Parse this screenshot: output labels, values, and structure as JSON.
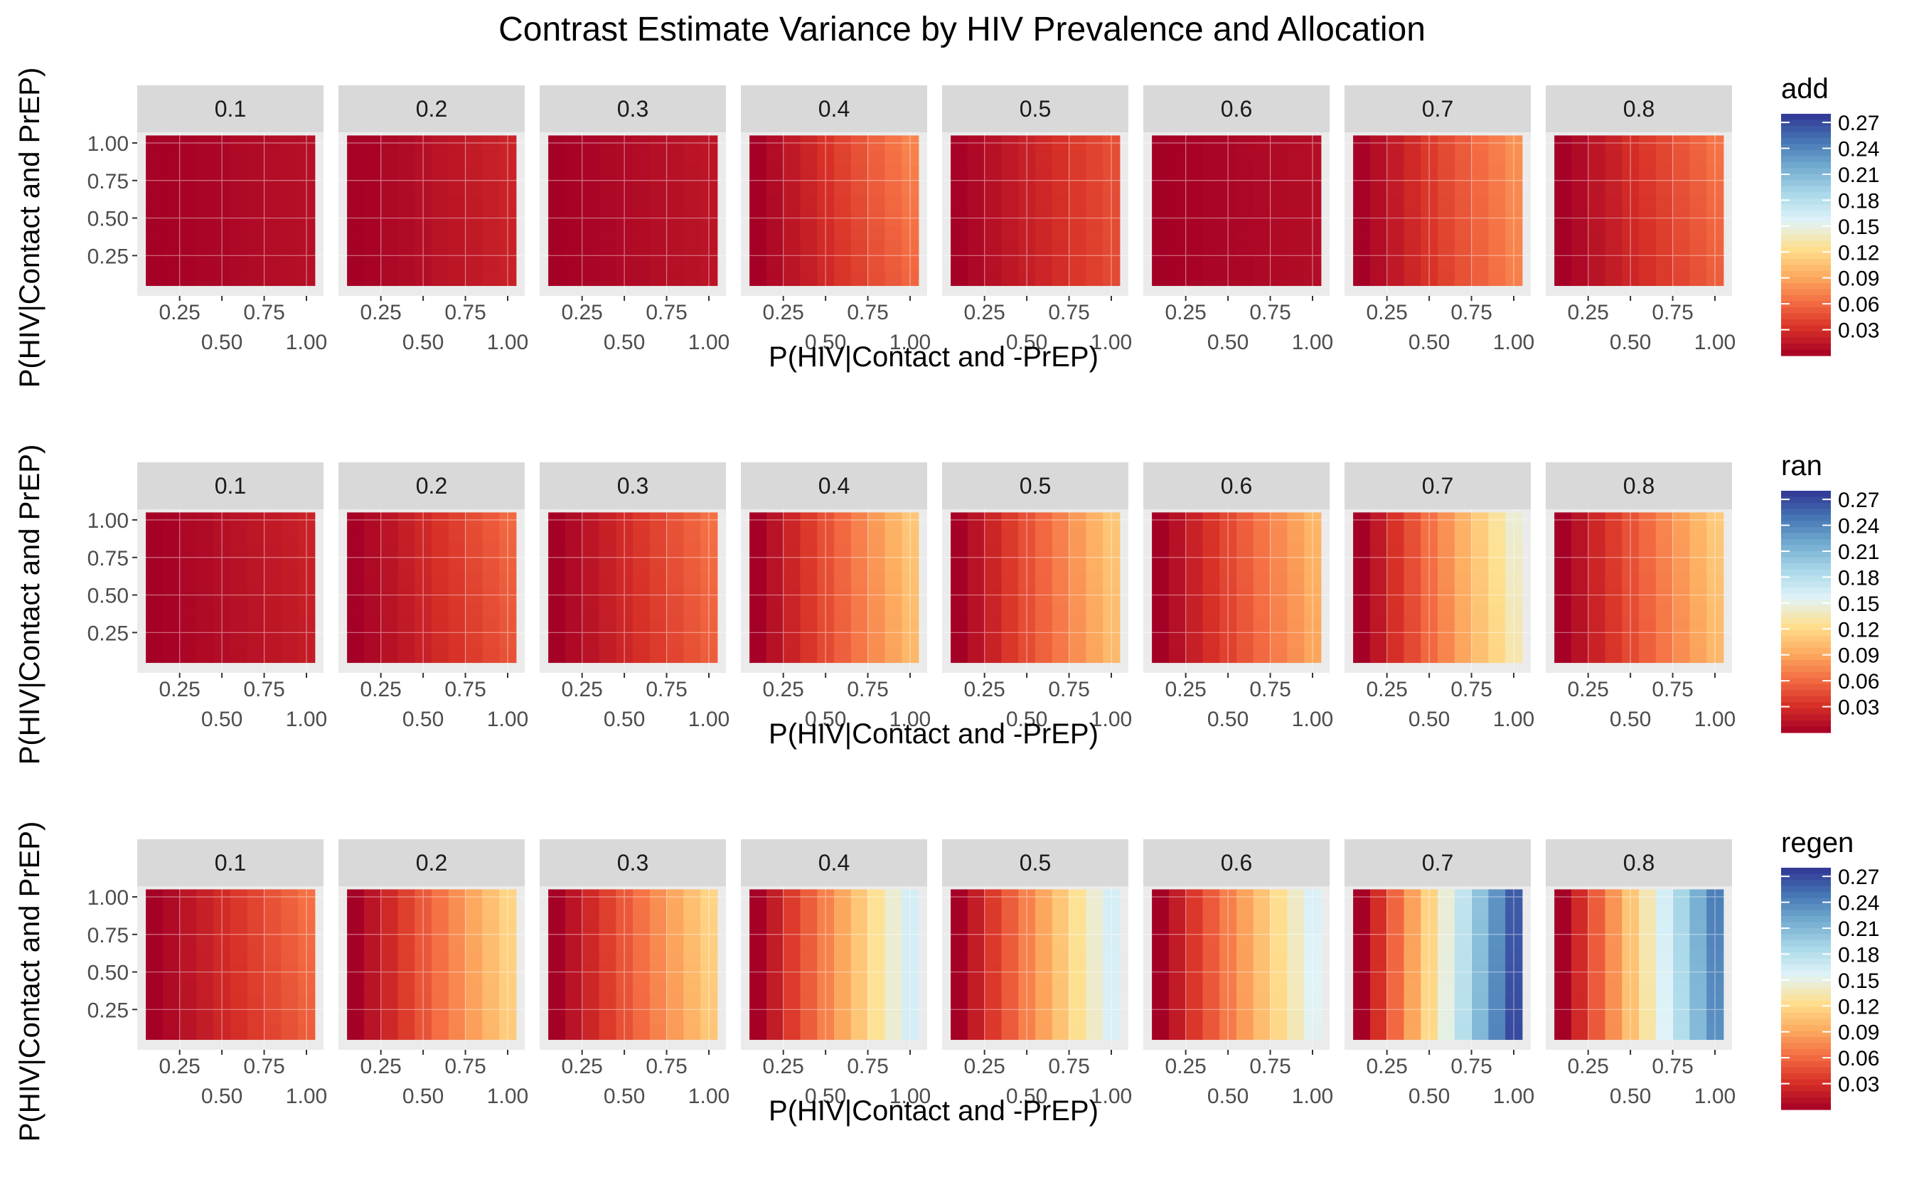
{
  "title": "Contrast Estimate Variance by HIV Prevalence and Allocation",
  "chart_data": {
    "type": "heatmap",
    "title": "Contrast Estimate Variance by HIV Prevalence and Allocation",
    "xlabel": "P(HIV|Contact and -PrEP)",
    "ylabel": "P(HIV|Contact and PrEP)",
    "x_ticks": [
      "0.25",
      "0.50",
      "0.75",
      "1.00"
    ],
    "y_ticks": [
      "0.25",
      "0.50",
      "0.75",
      "1.00"
    ],
    "x_range": [
      0.1,
      1.0
    ],
    "y_range": [
      0.1,
      1.0
    ],
    "facets": [
      "0.1",
      "0.2",
      "0.3",
      "0.4",
      "0.5",
      "0.6",
      "0.7",
      "0.8"
    ],
    "color_scale": {
      "palette": "RdYlBu",
      "range": [
        0,
        0.28
      ],
      "ticks": [
        "0.27",
        "0.24",
        "0.21",
        "0.18",
        "0.15",
        "0.12",
        "0.09",
        "0.06",
        "0.03"
      ],
      "stops": [
        "#a50026",
        "#d73027",
        "#f46d43",
        "#fdae61",
        "#fee090",
        "#e0f3f8",
        "#abd9e9",
        "#74add1",
        "#4575b4",
        "#313695"
      ]
    },
    "grid": true,
    "legend": "right",
    "rows": [
      {
        "name": "add",
        "panels": [
          {
            "facet": "0.1",
            "cell_means": [
              [
                0.0,
                0.001,
                0.002,
                0.003,
                0.004,
                0.005,
                0.007,
                0.008,
                0.009,
                0.01
              ],
              [
                0.001,
                0.001,
                0.002,
                0.003,
                0.004,
                0.006,
                0.007,
                0.008,
                0.009,
                0.01
              ]
            ]
          },
          {
            "facet": "0.2",
            "cell_means": [
              [
                0.0,
                0.002,
                0.005,
                0.007,
                0.009,
                0.012,
                0.014,
                0.016,
                0.019,
                0.021
              ],
              [
                0.002,
                0.002,
                0.005,
                0.007,
                0.01,
                0.013,
                0.015,
                0.018,
                0.02,
                0.023
              ]
            ]
          },
          {
            "facet": "0.3",
            "cell_means": [
              [
                0.0,
                0.001,
                0.003,
                0.004,
                0.006,
                0.007,
                0.009,
                0.01,
                0.011,
                0.013
              ],
              [
                0.0,
                0.002,
                0.003,
                0.005,
                0.006,
                0.008,
                0.01,
                0.011,
                0.013,
                0.014
              ]
            ]
          },
          {
            "facet": "0.4",
            "cell_means": [
              [
                0.0,
                0.006,
                0.013,
                0.019,
                0.026,
                0.033,
                0.039,
                0.046,
                0.052,
                0.058
              ],
              [
                0.0,
                0.008,
                0.016,
                0.024,
                0.032,
                0.041,
                0.049,
                0.057,
                0.065,
                0.073
              ]
            ]
          },
          {
            "facet": "0.5",
            "cell_means": [
              [
                0.0,
                0.005,
                0.01,
                0.015,
                0.019,
                0.024,
                0.029,
                0.034,
                0.039,
                0.044
              ],
              [
                0.002,
                0.006,
                0.011,
                0.016,
                0.021,
                0.026,
                0.031,
                0.036,
                0.041,
                0.046
              ]
            ]
          },
          {
            "facet": "0.6",
            "cell_means": [
              [
                0.0,
                0.001,
                0.002,
                0.003,
                0.004,
                0.004,
                0.005,
                0.006,
                0.007,
                0.008
              ],
              [
                0.0,
                0.001,
                0.002,
                0.003,
                0.004,
                0.005,
                0.006,
                0.007,
                0.008,
                0.009
              ]
            ]
          },
          {
            "facet": "0.7",
            "cell_means": [
              [
                0.0,
                0.008,
                0.016,
                0.024,
                0.032,
                0.04,
                0.048,
                0.055,
                0.063,
                0.071
              ],
              [
                0.002,
                0.01,
                0.018,
                0.027,
                0.036,
                0.045,
                0.053,
                0.062,
                0.07,
                0.079
              ]
            ]
          },
          {
            "facet": "0.8",
            "cell_means": [
              [
                0.0,
                0.006,
                0.012,
                0.018,
                0.024,
                0.03,
                0.036,
                0.042,
                0.048,
                0.054
              ],
              [
                0.0,
                0.007,
                0.014,
                0.021,
                0.029,
                0.036,
                0.043,
                0.05,
                0.057,
                0.065
              ]
            ]
          }
        ]
      },
      {
        "name": "ran",
        "panels": [
          {
            "facet": "0.1",
            "cell_means": [
              [
                0.0,
                0.002,
                0.004,
                0.006,
                0.008,
                0.01,
                0.012,
                0.014,
                0.016,
                0.018
              ],
              [
                0.0,
                0.002,
                0.005,
                0.007,
                0.01,
                0.012,
                0.015,
                0.017,
                0.019,
                0.022
              ]
            ]
          },
          {
            "facet": "0.2",
            "cell_means": [
              [
                0.0,
                0.005,
                0.011,
                0.016,
                0.021,
                0.027,
                0.032,
                0.037,
                0.043,
                0.048
              ],
              [
                0.001,
                0.007,
                0.013,
                0.02,
                0.026,
                0.033,
                0.039,
                0.046,
                0.052,
                0.059
              ]
            ]
          },
          {
            "facet": "0.3",
            "cell_means": [
              [
                0.0,
                0.006,
                0.012,
                0.018,
                0.024,
                0.03,
                0.036,
                0.042,
                0.048,
                0.054
              ],
              [
                0.0,
                0.007,
                0.014,
                0.021,
                0.028,
                0.035,
                0.042,
                0.049,
                0.056,
                0.063
              ]
            ]
          },
          {
            "facet": "0.4",
            "cell_means": [
              [
                0.0,
                0.011,
                0.022,
                0.033,
                0.044,
                0.055,
                0.066,
                0.077,
                0.088,
                0.099
              ],
              [
                0.0,
                0.012,
                0.024,
                0.036,
                0.048,
                0.06,
                0.072,
                0.084,
                0.096,
                0.108
              ]
            ]
          },
          {
            "facet": "0.5",
            "cell_means": [
              [
                0.0,
                0.011,
                0.022,
                0.034,
                0.045,
                0.056,
                0.067,
                0.078,
                0.089,
                0.1
              ],
              [
                0.001,
                0.012,
                0.024,
                0.036,
                0.048,
                0.06,
                0.072,
                0.084,
                0.096,
                0.108
              ]
            ]
          },
          {
            "facet": "0.6",
            "cell_means": [
              [
                0.0,
                0.01,
                0.02,
                0.03,
                0.04,
                0.05,
                0.06,
                0.07,
                0.079,
                0.089
              ],
              [
                0.0,
                0.011,
                0.022,
                0.033,
                0.044,
                0.055,
                0.066,
                0.077,
                0.087,
                0.098
              ]
            ]
          },
          {
            "facet": "0.7",
            "cell_means": [
              [
                0.0,
                0.015,
                0.03,
                0.044,
                0.059,
                0.074,
                0.089,
                0.104,
                0.118,
                0.133
              ],
              [
                0.0,
                0.016,
                0.032,
                0.048,
                0.064,
                0.08,
                0.096,
                0.112,
                0.128,
                0.144
              ]
            ]
          },
          {
            "facet": "0.8",
            "cell_means": [
              [
                0.0,
                0.011,
                0.022,
                0.033,
                0.044,
                0.055,
                0.066,
                0.077,
                0.088,
                0.099
              ],
              [
                0.0,
                0.012,
                0.025,
                0.037,
                0.049,
                0.061,
                0.074,
                0.086,
                0.098,
                0.11
              ]
            ]
          }
        ]
      },
      {
        "name": "regen",
        "panels": [
          {
            "facet": "0.1",
            "cell_means": [
              [
                0.0,
                0.006,
                0.012,
                0.018,
                0.024,
                0.03,
                0.036,
                0.042,
                0.048,
                0.054
              ],
              [
                0.0,
                0.007,
                0.014,
                0.021,
                0.028,
                0.035,
                0.042,
                0.049,
                0.056,
                0.063
              ]
            ]
          },
          {
            "facet": "0.2",
            "cell_means": [
              [
                0.0,
                0.012,
                0.025,
                0.037,
                0.049,
                0.062,
                0.074,
                0.086,
                0.099,
                0.111
              ],
              [
                0.0,
                0.013,
                0.026,
                0.039,
                0.052,
                0.065,
                0.078,
                0.091,
                0.104,
                0.117
              ]
            ]
          },
          {
            "facet": "0.3",
            "cell_means": [
              [
                0.0,
                0.012,
                0.024,
                0.036,
                0.048,
                0.06,
                0.072,
                0.084,
                0.096,
                0.108
              ],
              [
                0.0,
                0.013,
                0.026,
                0.039,
                0.052,
                0.065,
                0.078,
                0.091,
                0.104,
                0.117
              ]
            ]
          },
          {
            "facet": "0.4",
            "cell_means": [
              [
                0.0,
                0.018,
                0.036,
                0.054,
                0.072,
                0.09,
                0.108,
                0.126,
                0.144,
                0.162
              ],
              [
                0.0,
                0.018,
                0.036,
                0.054,
                0.072,
                0.09,
                0.108,
                0.126,
                0.144,
                0.162
              ]
            ]
          },
          {
            "facet": "0.5",
            "cell_means": [
              [
                0.0,
                0.018,
                0.035,
                0.053,
                0.071,
                0.088,
                0.106,
                0.124,
                0.141,
                0.159
              ],
              [
                0.0,
                0.018,
                0.036,
                0.054,
                0.072,
                0.09,
                0.108,
                0.126,
                0.144,
                0.162
              ]
            ]
          },
          {
            "facet": "0.6",
            "cell_means": [
              [
                0.0,
                0.017,
                0.034,
                0.051,
                0.068,
                0.085,
                0.102,
                0.119,
                0.136,
                0.153
              ],
              [
                0.0,
                0.018,
                0.035,
                0.053,
                0.071,
                0.088,
                0.106,
                0.124,
                0.141,
                0.159
              ]
            ]
          },
          {
            "facet": "0.7",
            "cell_means": [
              [
                0.0,
                0.03,
                0.06,
                0.09,
                0.12,
                0.15,
                0.18,
                0.21,
                0.24,
                0.27
              ],
              [
                0.0,
                0.029,
                0.058,
                0.087,
                0.116,
                0.145,
                0.174,
                0.203,
                0.232,
                0.261
              ]
            ]
          },
          {
            "facet": "0.8",
            "cell_means": [
              [
                0.0,
                0.026,
                0.052,
                0.078,
                0.104,
                0.13,
                0.156,
                0.182,
                0.208,
                0.234
              ],
              [
                0.0,
                0.027,
                0.054,
                0.081,
                0.108,
                0.135,
                0.162,
                0.189,
                0.216,
                0.243
              ]
            ]
          }
        ]
      }
    ]
  }
}
